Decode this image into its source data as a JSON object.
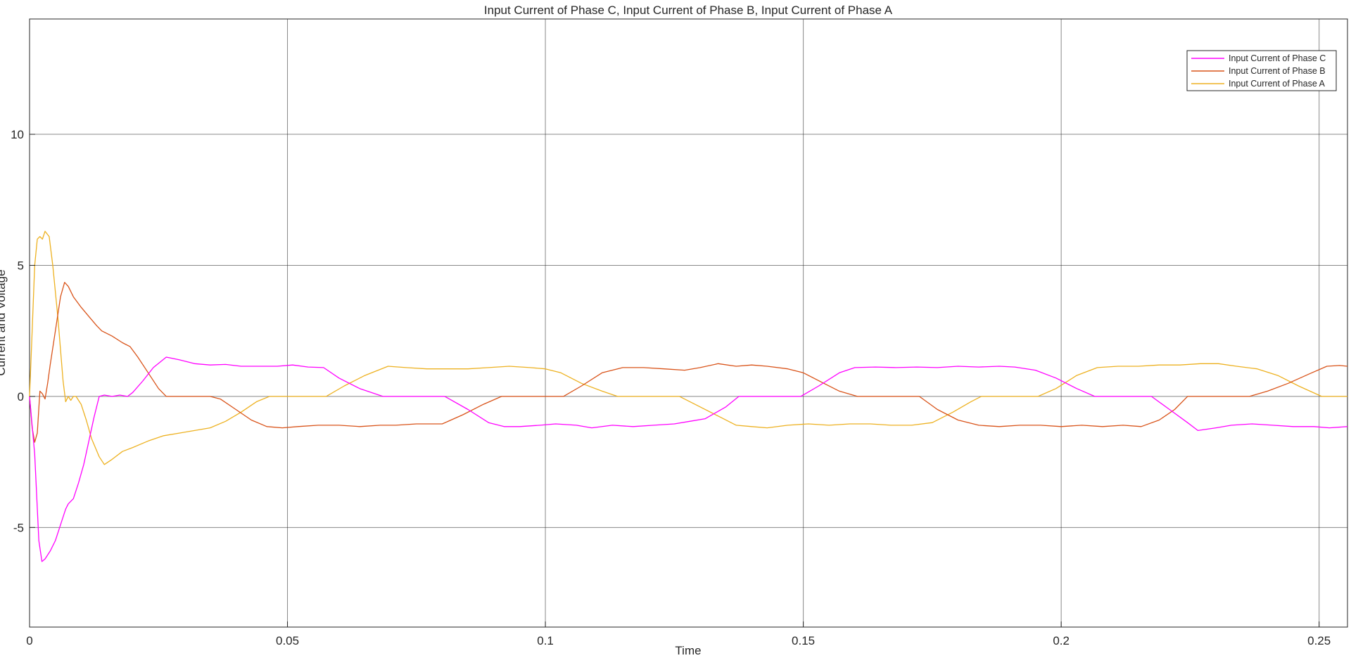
{
  "colors": {
    "background": "#ffffff",
    "axes": "#262626",
    "grid": "#262626",
    "phase_c": "#ff00ff",
    "phase_b": "#d95319",
    "phase_a": "#edb120"
  },
  "chart_data": {
    "type": "line",
    "title": "Input Current of Phase C, Input Current of Phase B, Input Current of Phase A",
    "xlabel": "Time",
    "ylabel": "Current and Voltage",
    "xlim": [
      0,
      0.2555
    ],
    "ylim": [
      -8.8,
      14.4
    ],
    "x_ticks": [
      0,
      0.05,
      0.1,
      0.15,
      0.2,
      0.25
    ],
    "x_tick_labels": [
      "0",
      "0.05",
      "0.1",
      "0.15",
      "0.2",
      "0.25"
    ],
    "y_ticks": [
      -5,
      0,
      5,
      10
    ],
    "y_tick_labels": [
      "-5",
      "0",
      "5",
      "10"
    ],
    "grid": true,
    "legend_position": "top-right",
    "series": [
      {
        "name": "Input Current of Phase C",
        "color": "#ff00ff",
        "points": [
          [
            0,
            0
          ],
          [
            0.001,
            -2.2
          ],
          [
            0.0018,
            -5.5
          ],
          [
            0.0024,
            -6.3
          ],
          [
            0.003,
            -6.2
          ],
          [
            0.004,
            -5.9
          ],
          [
            0.005,
            -5.5
          ],
          [
            0.006,
            -4.9
          ],
          [
            0.007,
            -4.3
          ],
          [
            0.0075,
            -4.1
          ],
          [
            0.0085,
            -3.9
          ],
          [
            0.0095,
            -3.3
          ],
          [
            0.0105,
            -2.6
          ],
          [
            0.0115,
            -1.7
          ],
          [
            0.0125,
            -0.8
          ],
          [
            0.0135,
            0.0
          ],
          [
            0.0145,
            0.05
          ],
          [
            0.016,
            0.0
          ],
          [
            0.0175,
            0.05
          ],
          [
            0.019,
            0.0
          ],
          [
            0.02,
            0.15
          ],
          [
            0.022,
            0.6
          ],
          [
            0.024,
            1.1
          ],
          [
            0.0265,
            1.5
          ],
          [
            0.029,
            1.4
          ],
          [
            0.032,
            1.25
          ],
          [
            0.035,
            1.2
          ],
          [
            0.038,
            1.22
          ],
          [
            0.041,
            1.15
          ],
          [
            0.045,
            1.15
          ],
          [
            0.048,
            1.15
          ],
          [
            0.051,
            1.2
          ],
          [
            0.054,
            1.12
          ],
          [
            0.057,
            1.1
          ],
          [
            0.06,
            0.7
          ],
          [
            0.064,
            0.3
          ],
          [
            0.0685,
            0.0
          ],
          [
            0.072,
            0.0
          ],
          [
            0.076,
            0.0
          ],
          [
            0.0805,
            0.0
          ],
          [
            0.085,
            -0.5
          ],
          [
            0.089,
            -1.0
          ],
          [
            0.092,
            -1.15
          ],
          [
            0.095,
            -1.15
          ],
          [
            0.099,
            -1.1
          ],
          [
            0.102,
            -1.05
          ],
          [
            0.106,
            -1.1
          ],
          [
            0.109,
            -1.2
          ],
          [
            0.113,
            -1.1
          ],
          [
            0.117,
            -1.15
          ],
          [
            0.121,
            -1.1
          ],
          [
            0.125,
            -1.05
          ],
          [
            0.128,
            -0.95
          ],
          [
            0.131,
            -0.85
          ],
          [
            0.135,
            -0.4
          ],
          [
            0.1375,
            0.0
          ],
          [
            0.142,
            0.0
          ],
          [
            0.146,
            0.0
          ],
          [
            0.1495,
            0.0
          ],
          [
            0.153,
            0.4
          ],
          [
            0.157,
            0.9
          ],
          [
            0.16,
            1.1
          ],
          [
            0.164,
            1.12
          ],
          [
            0.168,
            1.1
          ],
          [
            0.172,
            1.12
          ],
          [
            0.176,
            1.1
          ],
          [
            0.18,
            1.15
          ],
          [
            0.184,
            1.12
          ],
          [
            0.188,
            1.15
          ],
          [
            0.191,
            1.12
          ],
          [
            0.195,
            1.0
          ],
          [
            0.199,
            0.7
          ],
          [
            0.203,
            0.3
          ],
          [
            0.2065,
            0.0
          ],
          [
            0.21,
            0.0
          ],
          [
            0.214,
            0.0
          ],
          [
            0.2175,
            0.0
          ],
          [
            0.221,
            -0.5
          ],
          [
            0.2245,
            -1.0
          ],
          [
            0.2265,
            -1.3
          ],
          [
            0.23,
            -1.2
          ],
          [
            0.233,
            -1.1
          ],
          [
            0.237,
            -1.05
          ],
          [
            0.241,
            -1.1
          ],
          [
            0.245,
            -1.15
          ],
          [
            0.249,
            -1.15
          ],
          [
            0.252,
            -1.2
          ],
          [
            0.2555,
            -1.15
          ]
        ]
      },
      {
        "name": "Input Current of Phase B",
        "color": "#d95319",
        "points": [
          [
            0,
            0
          ],
          [
            0.0005,
            -1.2
          ],
          [
            0.001,
            -1.75
          ],
          [
            0.0015,
            -1.4
          ],
          [
            0.002,
            0.2
          ],
          [
            0.0025,
            0.1
          ],
          [
            0.003,
            -0.1
          ],
          [
            0.0035,
            0.5
          ],
          [
            0.004,
            1.2
          ],
          [
            0.005,
            2.5
          ],
          [
            0.006,
            3.8
          ],
          [
            0.0068,
            4.35
          ],
          [
            0.0075,
            4.2
          ],
          [
            0.0085,
            3.8
          ],
          [
            0.01,
            3.4
          ],
          [
            0.0115,
            3.05
          ],
          [
            0.013,
            2.7
          ],
          [
            0.014,
            2.5
          ],
          [
            0.016,
            2.3
          ],
          [
            0.018,
            2.05
          ],
          [
            0.0195,
            1.9
          ],
          [
            0.021,
            1.5
          ],
          [
            0.023,
            0.9
          ],
          [
            0.025,
            0.3
          ],
          [
            0.0265,
            0.0
          ],
          [
            0.03,
            0.0
          ],
          [
            0.035,
            0.0
          ],
          [
            0.037,
            -0.1
          ],
          [
            0.04,
            -0.5
          ],
          [
            0.043,
            -0.9
          ],
          [
            0.046,
            -1.15
          ],
          [
            0.049,
            -1.2
          ],
          [
            0.052,
            -1.15
          ],
          [
            0.056,
            -1.1
          ],
          [
            0.06,
            -1.1
          ],
          [
            0.064,
            -1.15
          ],
          [
            0.068,
            -1.1
          ],
          [
            0.071,
            -1.1
          ],
          [
            0.075,
            -1.05
          ],
          [
            0.08,
            -1.05
          ],
          [
            0.084,
            -0.7
          ],
          [
            0.088,
            -0.3
          ],
          [
            0.0915,
            0.0
          ],
          [
            0.095,
            0.0
          ],
          [
            0.099,
            0.0
          ],
          [
            0.1035,
            0.0
          ],
          [
            0.107,
            0.4
          ],
          [
            0.111,
            0.9
          ],
          [
            0.115,
            1.1
          ],
          [
            0.119,
            1.1
          ],
          [
            0.123,
            1.05
          ],
          [
            0.127,
            1.0
          ],
          [
            0.13,
            1.1
          ],
          [
            0.1335,
            1.25
          ],
          [
            0.137,
            1.15
          ],
          [
            0.14,
            1.2
          ],
          [
            0.143,
            1.15
          ],
          [
            0.147,
            1.05
          ],
          [
            0.15,
            0.9
          ],
          [
            0.154,
            0.5
          ],
          [
            0.157,
            0.2
          ],
          [
            0.1605,
            0.0
          ],
          [
            0.164,
            0.0
          ],
          [
            0.168,
            0.0
          ],
          [
            0.1725,
            0.0
          ],
          [
            0.176,
            -0.5
          ],
          [
            0.18,
            -0.9
          ],
          [
            0.184,
            -1.1
          ],
          [
            0.188,
            -1.15
          ],
          [
            0.192,
            -1.1
          ],
          [
            0.196,
            -1.1
          ],
          [
            0.2,
            -1.15
          ],
          [
            0.204,
            -1.1
          ],
          [
            0.208,
            -1.15
          ],
          [
            0.212,
            -1.1
          ],
          [
            0.2155,
            -1.15
          ],
          [
            0.219,
            -0.9
          ],
          [
            0.222,
            -0.5
          ],
          [
            0.2245,
            0.0
          ],
          [
            0.228,
            0.0
          ],
          [
            0.2325,
            0.0
          ],
          [
            0.2365,
            0.0
          ],
          [
            0.24,
            0.2
          ],
          [
            0.244,
            0.5
          ],
          [
            0.248,
            0.85
          ],
          [
            0.2515,
            1.15
          ],
          [
            0.254,
            1.18
          ],
          [
            0.2555,
            1.15
          ]
        ]
      },
      {
        "name": "Input Current of Phase A",
        "color": "#edb120",
        "points": [
          [
            0,
            0
          ],
          [
            0.0005,
            2.5
          ],
          [
            0.001,
            5.0
          ],
          [
            0.0015,
            6.0
          ],
          [
            0.002,
            6.1
          ],
          [
            0.0025,
            6.0
          ],
          [
            0.003,
            6.3
          ],
          [
            0.0038,
            6.1
          ],
          [
            0.0045,
            5.0
          ],
          [
            0.0055,
            3.0
          ],
          [
            0.0065,
            0.6
          ],
          [
            0.007,
            -0.2
          ],
          [
            0.0075,
            0.0
          ],
          [
            0.008,
            -0.15
          ],
          [
            0.0085,
            0.0
          ],
          [
            0.009,
            0.0
          ],
          [
            0.01,
            -0.3
          ],
          [
            0.011,
            -0.9
          ],
          [
            0.012,
            -1.6
          ],
          [
            0.0135,
            -2.3
          ],
          [
            0.0145,
            -2.6
          ],
          [
            0.016,
            -2.4
          ],
          [
            0.018,
            -2.1
          ],
          [
            0.02,
            -1.95
          ],
          [
            0.023,
            -1.7
          ],
          [
            0.026,
            -1.5
          ],
          [
            0.029,
            -1.4
          ],
          [
            0.032,
            -1.3
          ],
          [
            0.035,
            -1.2
          ],
          [
            0.038,
            -0.95
          ],
          [
            0.041,
            -0.6
          ],
          [
            0.044,
            -0.2
          ],
          [
            0.0465,
            0.0
          ],
          [
            0.05,
            0.0
          ],
          [
            0.054,
            0.0
          ],
          [
            0.0575,
            0.0
          ],
          [
            0.061,
            0.4
          ],
          [
            0.065,
            0.8
          ],
          [
            0.0695,
            1.15
          ],
          [
            0.073,
            1.1
          ],
          [
            0.077,
            1.05
          ],
          [
            0.081,
            1.05
          ],
          [
            0.085,
            1.05
          ],
          [
            0.089,
            1.1
          ],
          [
            0.093,
            1.15
          ],
          [
            0.097,
            1.1
          ],
          [
            0.1,
            1.05
          ],
          [
            0.103,
            0.9
          ],
          [
            0.107,
            0.5
          ],
          [
            0.111,
            0.2
          ],
          [
            0.114,
            0.0
          ],
          [
            0.118,
            0.0
          ],
          [
            0.122,
            0.0
          ],
          [
            0.126,
            0.0
          ],
          [
            0.13,
            -0.4
          ],
          [
            0.134,
            -0.8
          ],
          [
            0.137,
            -1.1
          ],
          [
            0.14,
            -1.15
          ],
          [
            0.143,
            -1.2
          ],
          [
            0.147,
            -1.1
          ],
          [
            0.151,
            -1.05
          ],
          [
            0.155,
            -1.1
          ],
          [
            0.159,
            -1.05
          ],
          [
            0.163,
            -1.05
          ],
          [
            0.167,
            -1.1
          ],
          [
            0.171,
            -1.1
          ],
          [
            0.175,
            -1.0
          ],
          [
            0.179,
            -0.6
          ],
          [
            0.1825,
            -0.2
          ],
          [
            0.1845,
            0.0
          ],
          [
            0.188,
            0.0
          ],
          [
            0.192,
            0.0
          ],
          [
            0.1955,
            0.0
          ],
          [
            0.199,
            0.3
          ],
          [
            0.203,
            0.8
          ],
          [
            0.207,
            1.1
          ],
          [
            0.211,
            1.15
          ],
          [
            0.215,
            1.15
          ],
          [
            0.219,
            1.2
          ],
          [
            0.223,
            1.2
          ],
          [
            0.227,
            1.25
          ],
          [
            0.2305,
            1.25
          ],
          [
            0.234,
            1.15
          ],
          [
            0.238,
            1.05
          ],
          [
            0.242,
            0.8
          ],
          [
            0.246,
            0.4
          ],
          [
            0.2505,
            0.0
          ],
          [
            0.2555,
            0.0
          ]
        ]
      }
    ]
  }
}
